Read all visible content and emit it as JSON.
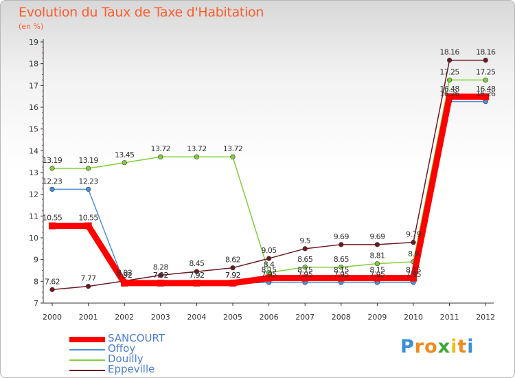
{
  "header": {
    "title": "Evolution du Taux de Taxe d'Habitation",
    "subtitle": "(en %)"
  },
  "chart_data": {
    "type": "line",
    "x": [
      "2000",
      "2001",
      "2002",
      "2003",
      "2004",
      "2005",
      "2006",
      "2007",
      "2008",
      "2009",
      "2010",
      "2011",
      "2012"
    ],
    "ylim": [
      7,
      19
    ],
    "yticks": [
      "7",
      "8",
      "9",
      "10",
      "11",
      "12",
      "13",
      "14",
      "15",
      "16",
      "17",
      "18",
      "19"
    ],
    "grid": false,
    "legend_position": "bottom-left",
    "series": [
      {
        "name": "SANCOURT",
        "color": "#ff0000",
        "values": [
          10.55,
          10.55,
          7.92,
          7.92,
          7.92,
          7.92,
          8.15,
          8.15,
          8.15,
          8.15,
          8.15,
          16.48,
          16.48
        ],
        "labels": [
          "10.55",
          "10.55",
          "7.92",
          "7.92",
          "7.92",
          "7.92",
          "8.15",
          "8.15",
          "8.15",
          "8.15",
          "8.15",
          "16.48",
          "16.48"
        ]
      },
      {
        "name": "Offoy",
        "color": "#4a90d9",
        "values": [
          12.23,
          12.23,
          7.92,
          7.92,
          7.92,
          7.92,
          7.95,
          7.95,
          7.95,
          7.95,
          7.95,
          16.26,
          16.26
        ],
        "labels": [
          "12.23",
          "12.23",
          "7.92",
          "7.92",
          "7.92",
          "7.92",
          "7.95",
          "7.95",
          "7.95",
          "7.95",
          "7.95",
          "16.26",
          "16.26"
        ]
      },
      {
        "name": "Douilly",
        "color": "#7fd03a",
        "values": [
          13.19,
          13.19,
          13.45,
          13.72,
          13.72,
          13.72,
          8.4,
          8.65,
          8.65,
          8.81,
          8.9,
          17.25,
          17.25
        ],
        "labels": [
          "13.19",
          "13.19",
          "13.45",
          "13.72",
          "13.72",
          "13.72",
          "8.4",
          "8.65",
          "8.65",
          "8.81",
          "8.9",
          "17.25",
          "17.25"
        ]
      },
      {
        "name": "Eppeville",
        "color": "#6b1a22",
        "values": [
          7.62,
          7.77,
          8.02,
          8.28,
          8.45,
          8.62,
          9.05,
          9.5,
          9.69,
          9.69,
          9.79,
          18.16,
          18.16
        ],
        "labels": [
          "7.62",
          "7.77",
          "8.02",
          "8.28",
          "8.45",
          "8.62",
          "9.05",
          "9.5",
          "9.69",
          "9.69",
          "9.79",
          "18.16",
          "18.16"
        ]
      }
    ]
  },
  "legend": {
    "items": [
      {
        "label": "SANCOURT",
        "color": "#ff0000",
        "thickness": 8
      },
      {
        "label": "Offoy",
        "color": "#4a90d9",
        "thickness": 2
      },
      {
        "label": "Douilly",
        "color": "#7fd03a",
        "thickness": 2
      },
      {
        "label": "Eppeville",
        "color": "#6b1a22",
        "thickness": 2
      }
    ]
  },
  "logo": {
    "letters": [
      {
        "char": "P",
        "color": "#3a8fd8"
      },
      {
        "char": "r",
        "color": "#f08a20"
      },
      {
        "char": "o",
        "color": "#f08a20"
      },
      {
        "char": "x",
        "color": "#3aa83a"
      },
      {
        "char": "i",
        "color": "#e8c21a"
      },
      {
        "char": "t",
        "color": "#f08a20"
      },
      {
        "char": "i",
        "color": "#3a8fd8"
      }
    ]
  }
}
